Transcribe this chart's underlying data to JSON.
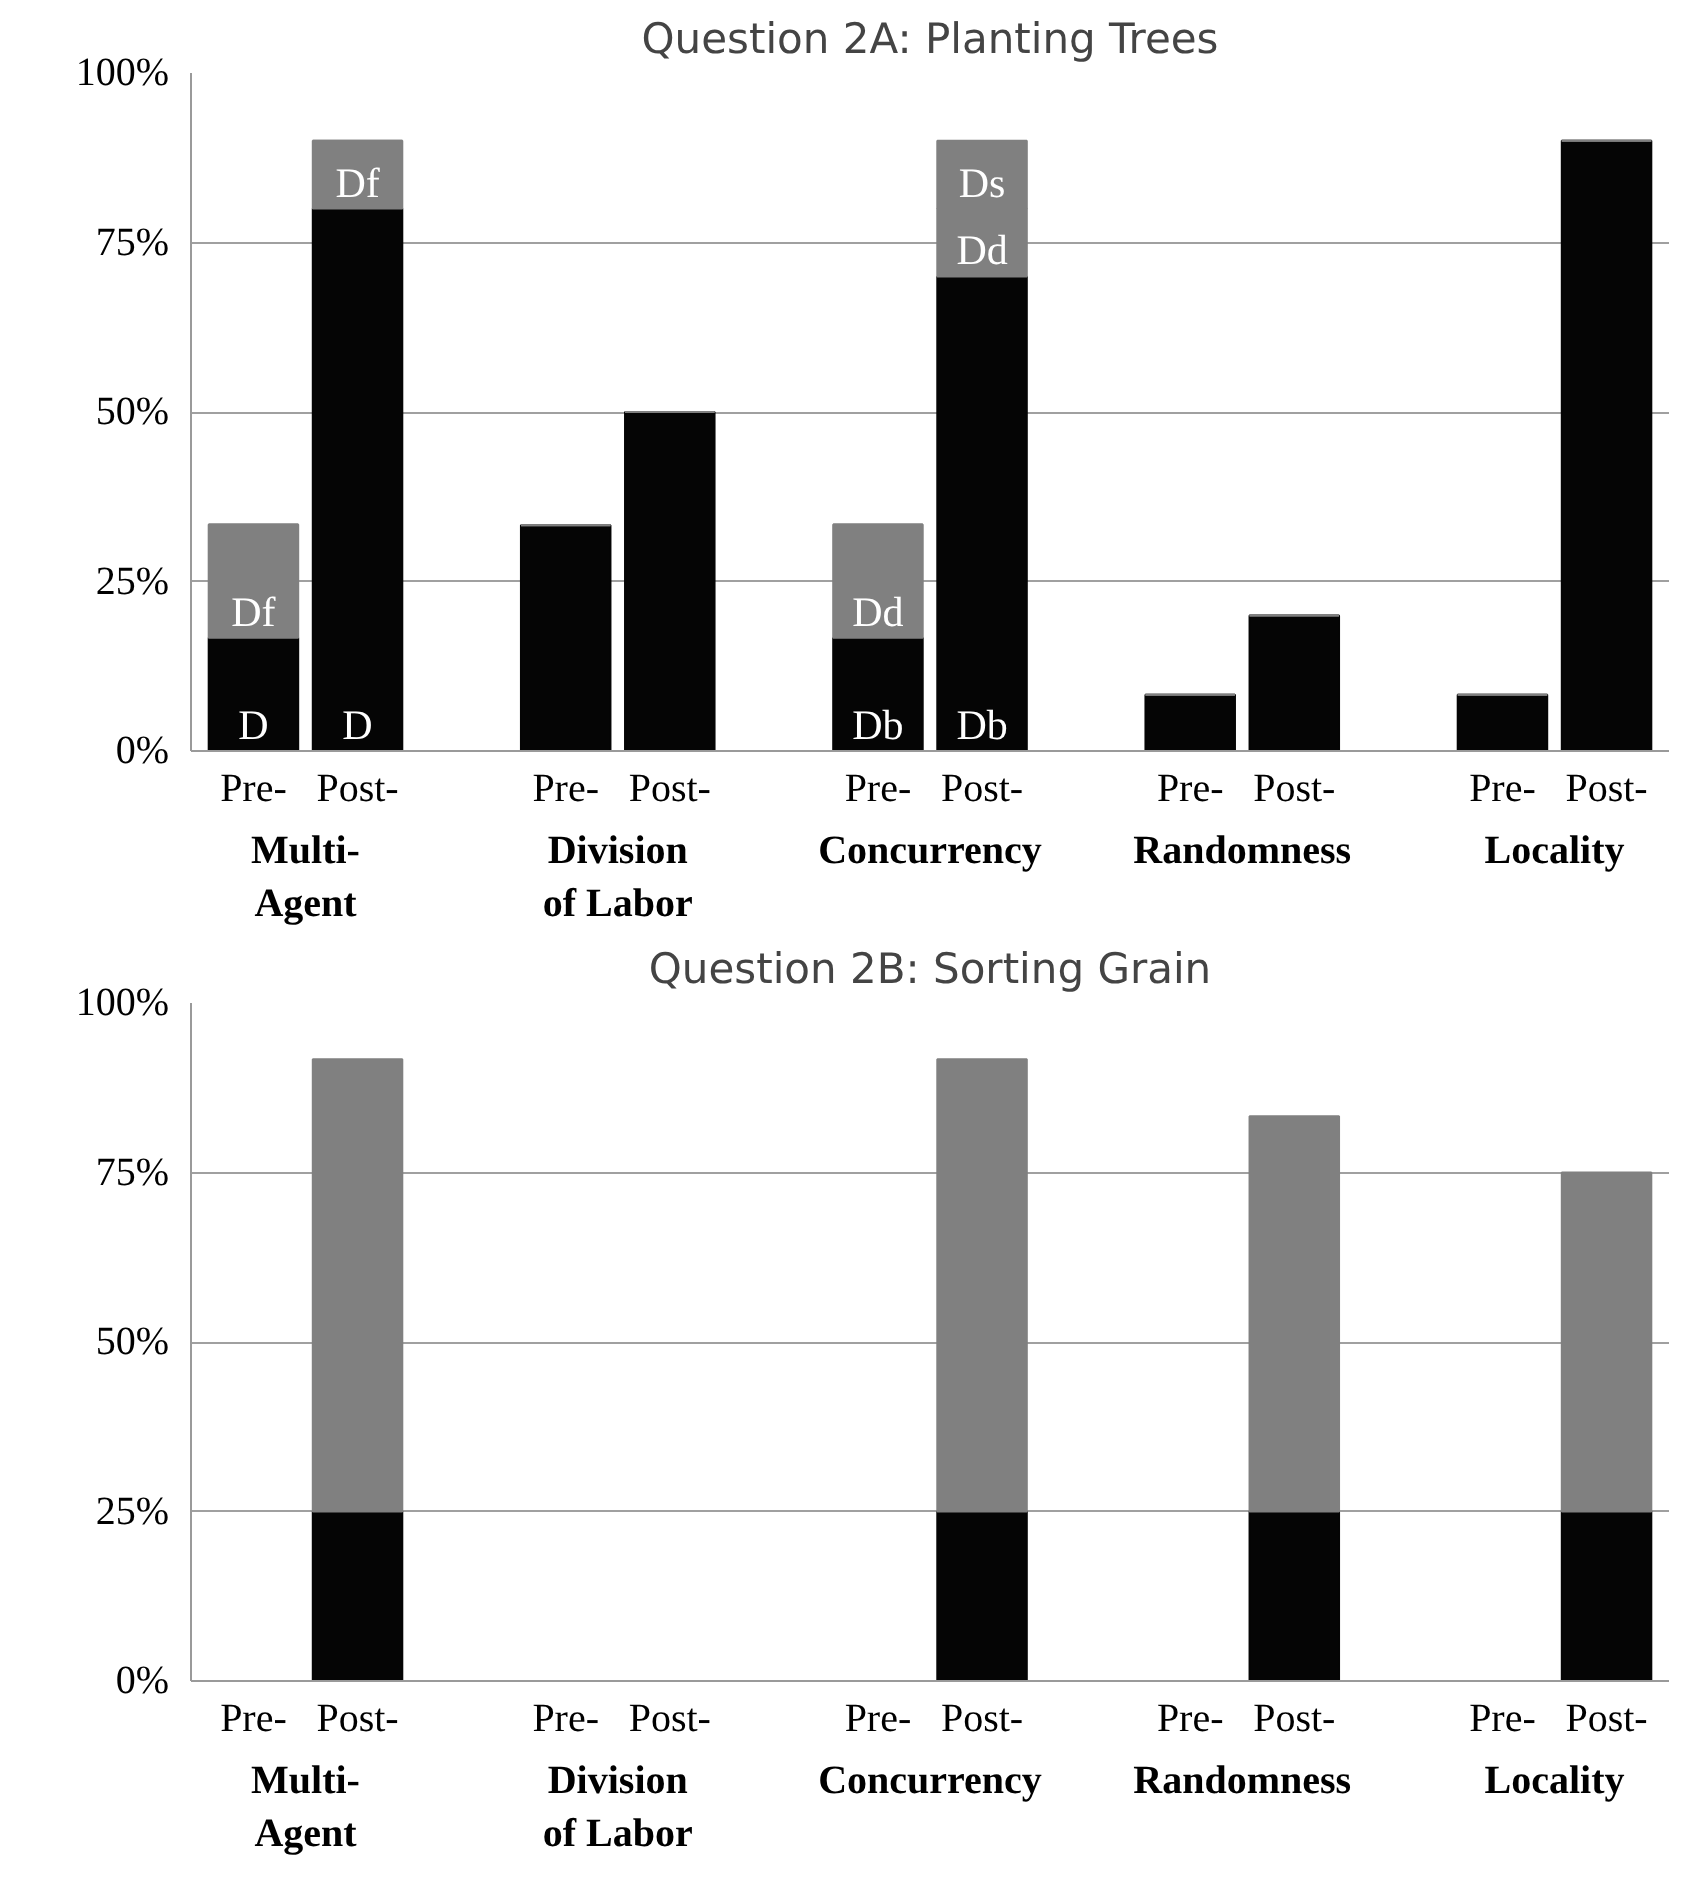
{
  "chart_data": [
    {
      "type": "bar",
      "title": "Question 2A: Planting Trees",
      "stacked": true,
      "categories": [
        "Pre-",
        "Post-",
        "Pre-",
        "Post-",
        "Pre-",
        "Post-",
        "Pre-",
        "Post-",
        "Pre-",
        "Post-"
      ],
      "series": [
        {
          "color": "#050505",
          "values": [
            16.7,
            80,
            33.3,
            50,
            16.7,
            70,
            8.3,
            20,
            8.3,
            90
          ],
          "value_labels": [
            "D",
            "D",
            null,
            null,
            "Db",
            "Db",
            null,
            null,
            null,
            null
          ]
        },
        {
          "color": "#808080",
          "values": [
            16.7,
            10,
            0,
            0,
            16.7,
            10,
            0,
            0,
            0,
            0
          ],
          "value_labels": [
            "Df",
            "Df",
            null,
            null,
            "Dd",
            "Dd",
            null,
            null,
            null,
            null
          ]
        },
        {
          "color": "#808080",
          "values": [
            0,
            0,
            0,
            0,
            0,
            10,
            0,
            0,
            0,
            0
          ],
          "value_labels": [
            null,
            null,
            null,
            null,
            null,
            "Ds",
            null,
            null,
            null,
            null
          ]
        }
      ],
      "ylim": [
        0,
        100
      ],
      "yticks": [
        {
          "value": 0,
          "label": "0%"
        },
        {
          "value": 25,
          "label": "25%"
        },
        {
          "value": 50,
          "label": "50%"
        },
        {
          "value": 75,
          "label": "75%"
        },
        {
          "value": 100,
          "label": "100%"
        }
      ],
      "grid": "y",
      "annotations": [
        "Multi-\nAgent",
        "Division\nof Labor",
        "Concurrency",
        "Randomness",
        "Locality"
      ]
    },
    {
      "type": "bar",
      "title": "Question 2B: Sorting Grain",
      "stacked": true,
      "categories": [
        "Pre-",
        "Post-",
        "Pre-",
        "Post-",
        "Pre-",
        "Post-",
        "Pre-",
        "Post-",
        "Pre-",
        "Post-"
      ],
      "series": [
        {
          "color": "#050505",
          "values": [
            0,
            25,
            0,
            0,
            0,
            25,
            0,
            25,
            0,
            25
          ]
        },
        {
          "color": "#808080",
          "values": [
            0,
            66.7,
            0,
            0,
            0,
            66.7,
            0,
            58.3,
            0,
            50
          ]
        }
      ],
      "ylim": [
        0,
        100
      ],
      "yticks": [
        {
          "value": 0,
          "label": "0%"
        },
        {
          "value": 25,
          "label": "25%"
        },
        {
          "value": 50,
          "label": "50%"
        },
        {
          "value": 75,
          "label": "75%"
        },
        {
          "value": 100,
          "label": "100%"
        }
      ],
      "grid": "y",
      "annotations": [
        "Multi-\nAgent",
        "Division\nof Labor",
        "Concurrency",
        "Randomness",
        "Locality"
      ]
    }
  ]
}
